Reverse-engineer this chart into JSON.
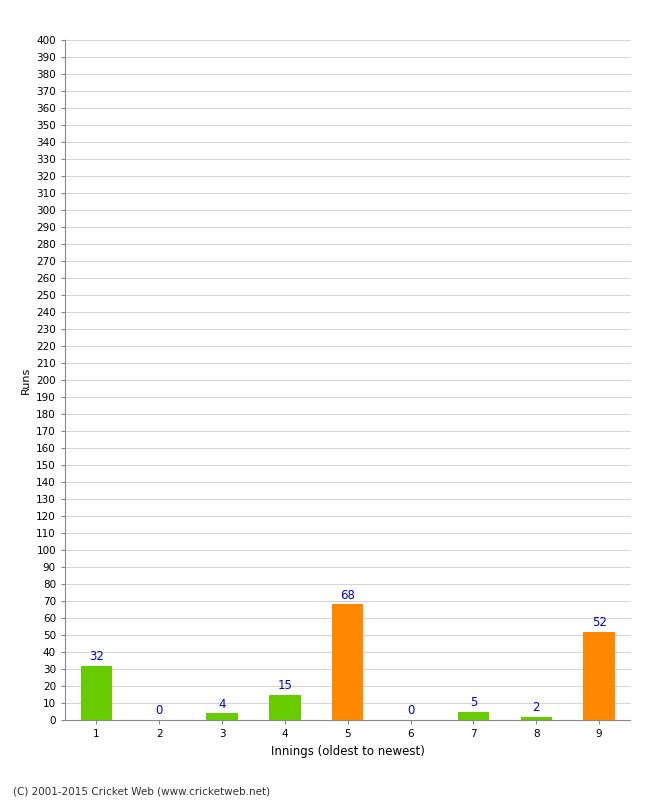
{
  "xlabel": "Innings (oldest to newest)",
  "ylabel": "Runs",
  "categories": [
    "1",
    "2",
    "3",
    "4",
    "5",
    "6",
    "7",
    "8",
    "9"
  ],
  "values": [
    32,
    0,
    4,
    15,
    68,
    0,
    5,
    2,
    52
  ],
  "bar_colors": [
    "#66cc00",
    "#66cc00",
    "#66cc00",
    "#66cc00",
    "#ff8800",
    "#66cc00",
    "#66cc00",
    "#66cc00",
    "#ff8800"
  ],
  "ylim": [
    0,
    400
  ],
  "ytick_step": 10,
  "label_color": "#0000cc",
  "background_color": "#ffffff",
  "grid_color": "#cccccc",
  "footer": "(C) 2001-2015 Cricket Web (www.cricketweb.net)",
  "bar_width": 0.5,
  "tick_fontsize": 7.5,
  "label_fontsize": 8.5,
  "ylabel_fontsize": 8,
  "footer_fontsize": 7.5
}
